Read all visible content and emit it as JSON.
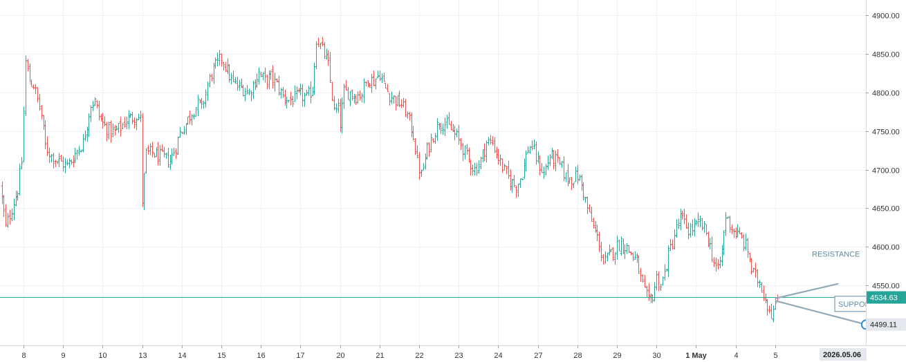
{
  "chart_data": {
    "type": "ohlc",
    "y_axis": {
      "side": "right",
      "range": [
        4472,
        4920
      ],
      "ticks": [
        "4900.00",
        "4850.00",
        "4800.00",
        "4750.00",
        "4700.00",
        "4650.00",
        "4600.00",
        "4550.00"
      ]
    },
    "x_axis": {
      "ticks": [
        {
          "label": "8",
          "day": 0
        },
        {
          "label": "9",
          "day": 1
        },
        {
          "label": "10",
          "day": 2
        },
        {
          "label": "13",
          "day": 3
        },
        {
          "label": "14",
          "day": 4
        },
        {
          "label": "15",
          "day": 5
        },
        {
          "label": "16",
          "day": 6
        },
        {
          "label": "17",
          "day": 7
        },
        {
          "label": "20",
          "day": 8
        },
        {
          "label": "21",
          "day": 9
        },
        {
          "label": "22",
          "day": 10
        },
        {
          "label": "23",
          "day": 11
        },
        {
          "label": "24",
          "day": 12
        },
        {
          "label": "27",
          "day": 13
        },
        {
          "label": "28",
          "day": 14
        },
        {
          "label": "29",
          "day": 15
        },
        {
          "label": "30",
          "day": 16
        },
        {
          "label": "1 May",
          "day": 17,
          "bold": true
        },
        {
          "label": "4",
          "day": 18
        },
        {
          "label": "5",
          "day": 19
        }
      ],
      "current_date_label": "2026.05.06"
    },
    "price_line": {
      "value": 4534.63,
      "label": "4534.63",
      "color": "#26a69a"
    },
    "cursor_level": {
      "value": 4499.11,
      "label": "4499.11"
    },
    "colors": {
      "up": "#26a69a",
      "down": "#ef5350",
      "grid": "#eef0f3",
      "trendline": "#8fa9b6"
    },
    "anchors": [
      [
        -0.6,
        4680
      ],
      [
        -0.45,
        4625
      ],
      [
        -0.3,
        4650
      ],
      [
        -0.15,
        4675
      ],
      [
        -0.05,
        4710
      ],
      [
        0.05,
        4840
      ],
      [
        0.15,
        4815
      ],
      [
        0.25,
        4810
      ],
      [
        0.35,
        4790
      ],
      [
        0.45,
        4770
      ],
      [
        0.55,
        4730
      ],
      [
        0.7,
        4718
      ],
      [
        0.85,
        4712
      ],
      [
        1.0,
        4708
      ],
      [
        1.1,
        4705
      ],
      [
        1.2,
        4712
      ],
      [
        1.35,
        4725
      ],
      [
        1.5,
        4735
      ],
      [
        1.6,
        4760
      ],
      [
        1.7,
        4785
      ],
      [
        1.8,
        4788
      ],
      [
        1.9,
        4770
      ],
      [
        2.0,
        4760
      ],
      [
        2.15,
        4750
      ],
      [
        2.3,
        4748
      ],
      [
        2.45,
        4755
      ],
      [
        2.6,
        4765
      ],
      [
        2.75,
        4768
      ],
      [
        2.85,
        4770
      ],
      [
        2.95,
        4765
      ],
      [
        3.0,
        4660
      ],
      [
        3.05,
        4690
      ],
      [
        3.1,
        4720
      ],
      [
        3.25,
        4722
      ],
      [
        3.4,
        4718
      ],
      [
        3.55,
        4715
      ],
      [
        3.7,
        4712
      ],
      [
        3.85,
        4730
      ],
      [
        3.95,
        4748
      ],
      [
        4.1,
        4760
      ],
      [
        4.25,
        4775
      ],
      [
        4.4,
        4785
      ],
      [
        4.5,
        4780
      ],
      [
        4.6,
        4800
      ],
      [
        4.75,
        4825
      ],
      [
        4.9,
        4838
      ],
      [
        5.0,
        4845
      ],
      [
        5.1,
        4835
      ],
      [
        5.25,
        4815
      ],
      [
        5.4,
        4808
      ],
      [
        5.55,
        4805
      ],
      [
        5.7,
        4800
      ],
      [
        5.8,
        4810
      ],
      [
        5.95,
        4825
      ],
      [
        6.1,
        4815
      ],
      [
        6.25,
        4820
      ],
      [
        6.4,
        4810
      ],
      [
        6.55,
        4795
      ],
      [
        6.7,
        4790
      ],
      [
        6.85,
        4792
      ],
      [
        7.0,
        4797
      ],
      [
        7.15,
        4792
      ],
      [
        7.3,
        4805
      ],
      [
        7.4,
        4870
      ],
      [
        7.5,
        4860
      ],
      [
        7.6,
        4850
      ],
      [
        7.7,
        4835
      ],
      [
        7.85,
        4775
      ],
      [
        7.95,
        4778
      ],
      [
        8.0,
        4760
      ],
      [
        8.1,
        4800
      ],
      [
        8.25,
        4800
      ],
      [
        8.4,
        4795
      ],
      [
        8.55,
        4800
      ],
      [
        8.7,
        4818
      ],
      [
        8.85,
        4815
      ],
      [
        9.0,
        4825
      ],
      [
        9.1,
        4810
      ],
      [
        9.25,
        4797
      ],
      [
        9.4,
        4790
      ],
      [
        9.55,
        4785
      ],
      [
        9.7,
        4770
      ],
      [
        9.85,
        4745
      ],
      [
        9.95,
        4710
      ],
      [
        10.05,
        4692
      ],
      [
        10.2,
        4725
      ],
      [
        10.35,
        4745
      ],
      [
        10.5,
        4762
      ],
      [
        10.65,
        4760
      ],
      [
        10.8,
        4752
      ],
      [
        10.95,
        4742
      ],
      [
        11.1,
        4728
      ],
      [
        11.25,
        4712
      ],
      [
        11.4,
        4700
      ],
      [
        11.55,
        4712
      ],
      [
        11.7,
        4735
      ],
      [
        11.85,
        4735
      ],
      [
        12.0,
        4715
      ],
      [
        12.15,
        4698
      ],
      [
        12.3,
        4685
      ],
      [
        12.45,
        4678
      ],
      [
        12.6,
        4695
      ],
      [
        12.75,
        4728
      ],
      [
        12.85,
        4730
      ],
      [
        12.95,
        4715
      ],
      [
        13.05,
        4705
      ],
      [
        13.15,
        4695
      ],
      [
        13.3,
        4718
      ],
      [
        13.45,
        4712
      ],
      [
        13.6,
        4702
      ],
      [
        13.7,
        4690
      ],
      [
        13.85,
        4688
      ],
      [
        14.0,
        4692
      ],
      [
        14.1,
        4680
      ],
      [
        14.2,
        4660
      ],
      [
        14.3,
        4640
      ],
      [
        14.4,
        4625
      ],
      [
        14.55,
        4605
      ],
      [
        14.65,
        4578
      ],
      [
        14.8,
        4588
      ],
      [
        14.95,
        4598
      ],
      [
        15.1,
        4605
      ],
      [
        15.25,
        4598
      ],
      [
        15.4,
        4588
      ],
      [
        15.5,
        4580
      ],
      [
        15.6,
        4558
      ],
      [
        15.7,
        4540
      ],
      [
        15.8,
        4528
      ],
      [
        15.9,
        4538
      ],
      [
        16.0,
        4560
      ],
      [
        16.1,
        4550
      ],
      [
        16.2,
        4565
      ],
      [
        16.3,
        4590
      ],
      [
        16.45,
        4615
      ],
      [
        16.6,
        4638
      ],
      [
        16.7,
        4630
      ],
      [
        16.8,
        4622
      ],
      [
        16.95,
        4625
      ],
      [
        17.1,
        4630
      ],
      [
        17.25,
        4618
      ],
      [
        17.35,
        4600
      ],
      [
        17.45,
        4580
      ],
      [
        17.55,
        4568
      ],
      [
        17.65,
        4595
      ],
      [
        17.75,
        4640
      ],
      [
        17.85,
        4630
      ],
      [
        17.95,
        4620
      ],
      [
        18.05,
        4615
      ],
      [
        18.15,
        4610
      ],
      [
        18.3,
        4595
      ],
      [
        18.4,
        4570
      ],
      [
        18.5,
        4560
      ],
      [
        18.6,
        4555
      ],
      [
        18.7,
        4540
      ],
      [
        18.8,
        4525
      ],
      [
        18.9,
        4515
      ],
      [
        19.0,
        4520
      ],
      [
        19.05,
        4530
      ]
    ],
    "trendlines": [
      {
        "name": "RESISTANCE",
        "points": [
          [
            19.0,
            4533
          ],
          [
            20.6,
            4552
          ]
        ]
      },
      {
        "name": "SUPPORT",
        "points": [
          [
            19.0,
            4530
          ],
          [
            21.3,
            4499
          ]
        ]
      }
    ],
    "labels": {
      "resistance": "RESISTANCE",
      "support": "SUPPORT"
    }
  }
}
